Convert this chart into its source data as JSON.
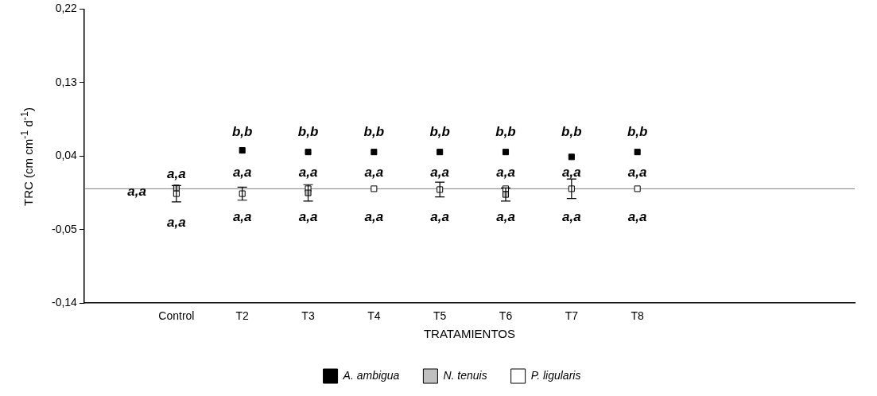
{
  "chart_data": {
    "type": "scatter",
    "xlabel": "TRATAMIENTOS",
    "ylabel": "TRC (cm cm$^{-1}$ d$^{-1}$)",
    "categories": [
      "Control",
      "T2",
      "T3",
      "T4",
      "T5",
      "T6",
      "T7",
      "T8"
    ],
    "series": [
      {
        "name": "A. ambigua",
        "color": "#000000",
        "values": [
          null,
          0.047,
          0.045,
          0.045,
          0.045,
          0.045,
          0.039,
          0.045
        ]
      },
      {
        "name": "N. tenuis",
        "color": "#c0c0c0",
        "values": [
          0.001,
          null,
          -0.005,
          null,
          null,
          -0.007,
          null,
          null
        ],
        "errors": [
          null,
          null,
          0.01,
          null,
          null,
          0.008,
          null,
          null
        ]
      },
      {
        "name": "P. ligularis",
        "color": "#ffffff",
        "values": [
          -0.006,
          -0.006,
          0.0,
          0.0,
          -0.001,
          0.0,
          0.0,
          0.0
        ],
        "errors": [
          0.01,
          0.008,
          null,
          null,
          0.009,
          null,
          0.012,
          null
        ]
      }
    ],
    "ylim": [
      -0.14,
      0.22
    ],
    "yticks": [
      {
        "value": -0.14,
        "label": "-0,14"
      },
      {
        "value": -0.05,
        "label": "-0,05"
      },
      {
        "value": 0.04,
        "label": "0,04"
      },
      {
        "value": 0.13,
        "label": "0,13"
      },
      {
        "value": 0.22,
        "label": "0,22"
      }
    ],
    "ref_lines": [
      {
        "axis": "y",
        "value": 0,
        "color": "#808080"
      }
    ],
    "grid": false,
    "legend": "bottom",
    "marker": "square",
    "annotations": [
      "a,a",
      "a,a",
      "a,a",
      "b,b",
      "a,a",
      "a,a",
      "b,b",
      "a,a",
      "a,a",
      "b,b",
      "a,a",
      "a,a",
      "b,b",
      "a,a",
      "a,a",
      "b,b",
      "a,a",
      "a,a",
      "b,b",
      "a,a",
      "a,a",
      "b,b",
      "a,a",
      "a,a"
    ]
  }
}
